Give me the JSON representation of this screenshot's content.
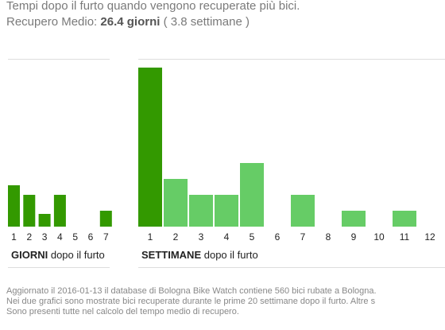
{
  "header": {
    "title": "Tempi dopo il furto quando vengono recuperate più bici.",
    "avg_label": "Recupero Medio:",
    "avg_value": "26.4 giorni",
    "avg_weeks": "( 3.8 settimane )"
  },
  "charts": {
    "days": {
      "label_bold": "GIORNI",
      "label_rest": " dopo il furto"
    },
    "weeks": {
      "label_bold": "SETTIMANE",
      "label_rest": " dopo il furto"
    }
  },
  "footer": {
    "line1": "Aggiornato il 2016-01-13 il database di Bologna Bike Watch contiene 560 bici rubate a Bologna.",
    "line2": "Nei due grafici sono mostrate bici recuperate durante le prime 20 settimane dopo il furto. Altre s",
    "line3": "Sono presenti tutte nel calcolo del tempo medio di recupero."
  },
  "colors": {
    "dark_green": "#339900",
    "light_green": "#66cc66",
    "rule": "#dddddd"
  },
  "chart_data": [
    {
      "type": "bar",
      "categories": [
        "1",
        "2",
        "3",
        "4",
        "5",
        "6",
        "7"
      ],
      "values": [
        13,
        10,
        4,
        10,
        0,
        0,
        5
      ],
      "xlabel": "GIORNI dopo il furto",
      "ylim": [
        0,
        100
      ],
      "grid": false
    },
    {
      "type": "bar",
      "categories": [
        "1",
        "2",
        "3",
        "4",
        "5",
        "6",
        "7",
        "8",
        "9",
        "10",
        "11",
        "12"
      ],
      "values": [
        50,
        15,
        10,
        10,
        20,
        0,
        10,
        0,
        5,
        0,
        5,
        0
      ],
      "highlight_index": 0,
      "xlabel": "SETTIMANE dopo il furto",
      "ylim": [
        0,
        100
      ],
      "grid": false
    }
  ]
}
